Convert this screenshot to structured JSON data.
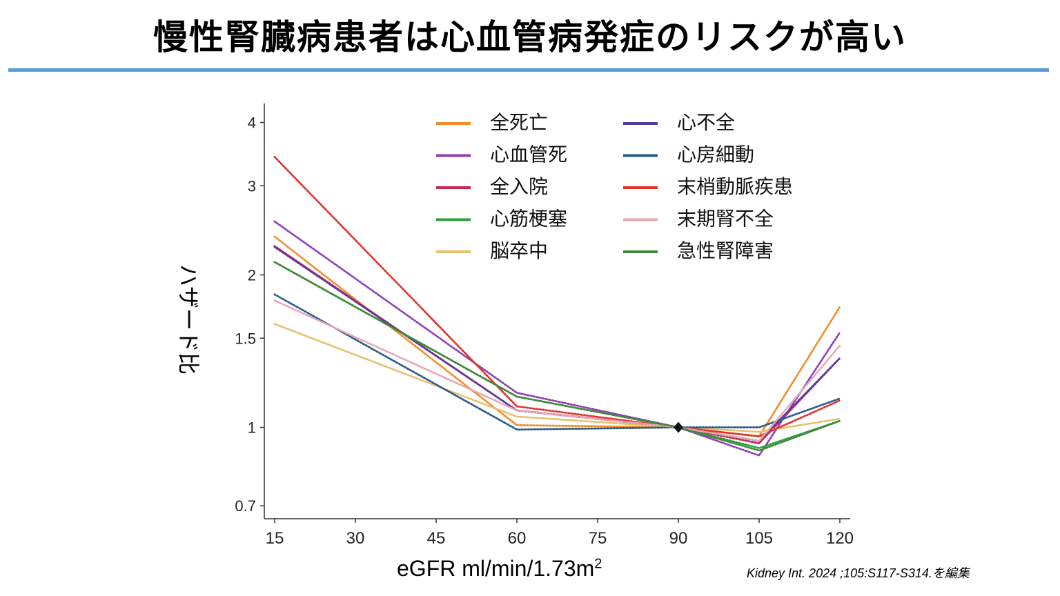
{
  "page": {
    "title": "慢性腎臓病患者は心血管病発症のリスクが高い",
    "rule_color": "#5b9bd5",
    "citation": "Kidney Int. 2024 ;105:S117-S314.を編集"
  },
  "chart_data": {
    "type": "line",
    "ylabel": "ハザード比",
    "xlabel_main": "eGFR ml/min/1.73m",
    "xlabel_sup": "2",
    "x": [
      15,
      60,
      90,
      105,
      120
    ],
    "x_ticks": [
      15,
      30,
      45,
      60,
      75,
      90,
      105,
      120
    ],
    "y_ticks": [
      0.7,
      1,
      1.5,
      2,
      3,
      4
    ],
    "y_tick_labels": [
      "0.7",
      "1",
      "1.5",
      "2",
      "3",
      "4"
    ],
    "xlim": [
      15,
      120
    ],
    "ylim": [
      0.66,
      4.2
    ],
    "y_scale": "log",
    "legend_position": "top-right",
    "reference_point": {
      "x": 90,
      "y": 1
    },
    "series": [
      {
        "name": "全死亡",
        "color": "#f28c28",
        "values": [
          2.38,
          1.01,
          1.0,
          0.96,
          1.73
        ]
      },
      {
        "name": "心血管死",
        "color": "#8e3fb5",
        "values": [
          2.55,
          1.17,
          1.0,
          0.88,
          1.54
        ]
      },
      {
        "name": "全入院",
        "color": "#c8284f",
        "values": [
          2.28,
          1.08,
          1.0,
          0.93,
          1.37
        ]
      },
      {
        "name": "心筋梗塞",
        "color": "#2e9e3e",
        "values": [
          2.12,
          1.15,
          1.0,
          0.91,
          1.03
        ]
      },
      {
        "name": "脳卒中",
        "color": "#e6c06a",
        "values": [
          1.6,
          1.05,
          1.0,
          0.98,
          1.04
        ]
      },
      {
        "name": "心不全",
        "color": "#5b3a9e",
        "values": [
          2.27,
          1.08,
          1.0,
          0.94,
          1.37
        ]
      },
      {
        "name": "心房細動",
        "color": "#2a5a8a",
        "values": [
          1.83,
          0.99,
          1.0,
          1.0,
          1.14
        ]
      },
      {
        "name": "末梢動脈疾患",
        "color": "#e0302a",
        "values": [
          3.42,
          1.1,
          1.0,
          0.96,
          1.13
        ]
      },
      {
        "name": "末期腎不全",
        "color": "#e6a8b4",
        "values": [
          1.78,
          1.08,
          1.0,
          0.94,
          1.45
        ]
      },
      {
        "name": "急性腎障害",
        "color": "#3f8a3a",
        "values": [
          2.12,
          1.15,
          1.0,
          0.9,
          1.03
        ]
      }
    ]
  }
}
